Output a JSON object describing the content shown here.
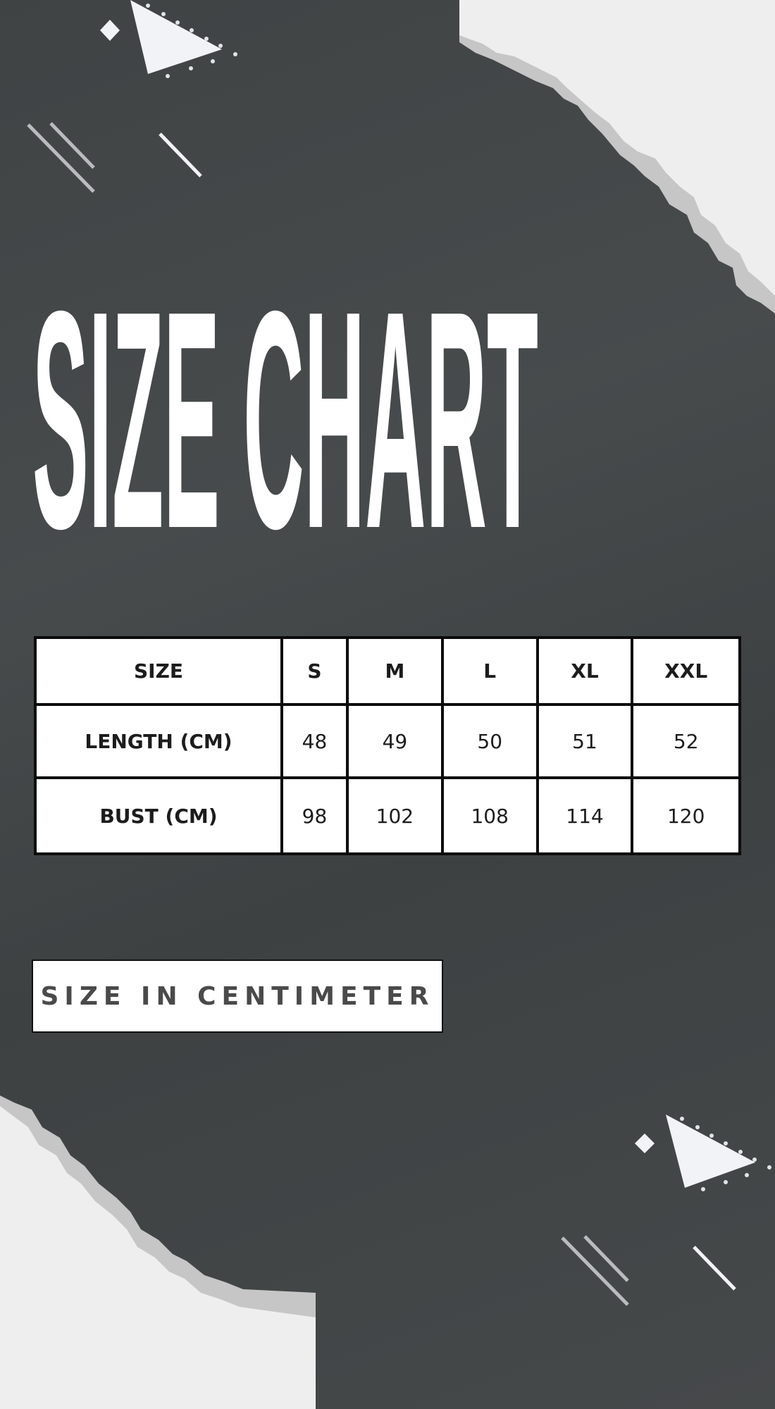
{
  "title": "SIZE CHART",
  "colors": {
    "background": "#404445",
    "paper": "#eeeeee",
    "paper_edge": "#c6c6c6",
    "table_border": "#0b0b0b"
  },
  "table": {
    "header": [
      "SIZE",
      "S",
      "M",
      "L",
      "XL",
      "XXL"
    ],
    "rows": [
      {
        "label": "LENGTH (CM)",
        "values": [
          "48",
          "49",
          "50",
          "51",
          "52"
        ]
      },
      {
        "label": "BUST (CM)",
        "values": [
          "98",
          "102",
          "108",
          "114",
          "120"
        ]
      }
    ]
  },
  "note": "SIZE IN CENTIMETER"
}
